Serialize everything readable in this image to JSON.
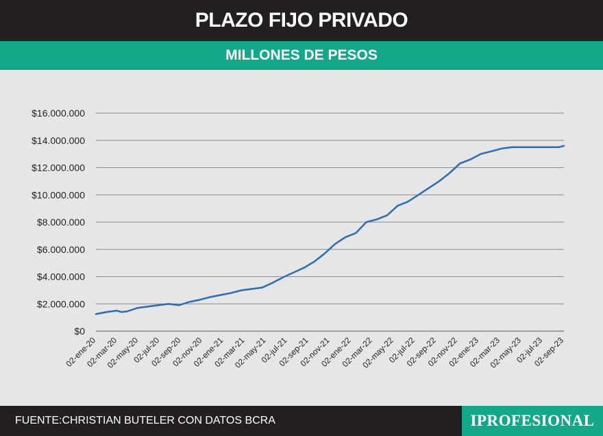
{
  "header": {
    "title": "PLAZO FIJO PRIVADO"
  },
  "subheader": {
    "title": "MILLONES DE PESOS"
  },
  "footer": {
    "source": "FUENTE:CHRISTIAN BUTELER  CON DATOS BCRA",
    "brand": "IPROFESIONAL"
  },
  "colors": {
    "header_bg": "#231f20",
    "accent": "#14a88a",
    "line": "#2e6fb5",
    "grid": "#8c8c8c",
    "background": "#e6e6e6"
  },
  "chart_data": {
    "type": "line",
    "title": "PLAZO FIJO PRIVADO",
    "subtitle": "MILLONES DE PESOS",
    "xlabel": "",
    "ylabel": "",
    "ylim": [
      0,
      16000000
    ],
    "grid": true,
    "y_ticks": [
      0,
      2000000,
      4000000,
      6000000,
      8000000,
      10000000,
      12000000,
      14000000,
      16000000
    ],
    "y_tick_labels": [
      "$0",
      "$2.000.000",
      "$4.000.000",
      "$6.000.000",
      "$8.000.000",
      "$10.000.000",
      "$12.000.000",
      "$14.000.000",
      "$16.000.000"
    ],
    "x_tick_labels": [
      "02-ene-20",
      "02-mar-20",
      "02-may-20",
      "02-jul-20",
      "02-sep-20",
      "02-nov-20",
      "02-ene-21",
      "02-mar-21",
      "02-may-21",
      "02-jul-21",
      "02-sep-21",
      "02-nov-21",
      "02-ene-22",
      "02-mar-22",
      "02-may-22",
      "02-jul-22",
      "02-sep-22",
      "02-nov-22",
      "02-ene-23",
      "02-mar-23",
      "02-may-23",
      "02-jul-23",
      "02-sep-23"
    ],
    "series": [
      {
        "name": "Plazo fijo privado",
        "x": [
          0,
          1,
          2,
          2.5,
          3,
          4,
          5,
          6,
          7,
          8,
          9,
          10,
          11,
          12,
          13,
          14,
          15,
          16,
          17,
          18,
          19,
          20,
          21,
          22,
          23,
          24,
          25,
          26,
          27,
          28,
          29,
          30,
          31,
          32,
          33,
          34,
          35,
          36,
          37,
          38,
          39,
          40,
          41,
          42,
          43,
          44,
          44.5,
          45
        ],
        "values": [
          1250000,
          1400000,
          1500000,
          1400000,
          1450000,
          1700000,
          1800000,
          1900000,
          2000000,
          1900000,
          2150000,
          2300000,
          2500000,
          2650000,
          2800000,
          3000000,
          3100000,
          3200000,
          3550000,
          3950000,
          4300000,
          4650000,
          5100000,
          5700000,
          6400000,
          6900000,
          7200000,
          8000000,
          8200000,
          8500000,
          9200000,
          9500000,
          10000000,
          10500000,
          11000000,
          11600000,
          12300000,
          12600000,
          13000000,
          13200000,
          13400000,
          13500000,
          13500000,
          13500000,
          13500000,
          13500000,
          13500000,
          13600000
        ]
      }
    ]
  }
}
